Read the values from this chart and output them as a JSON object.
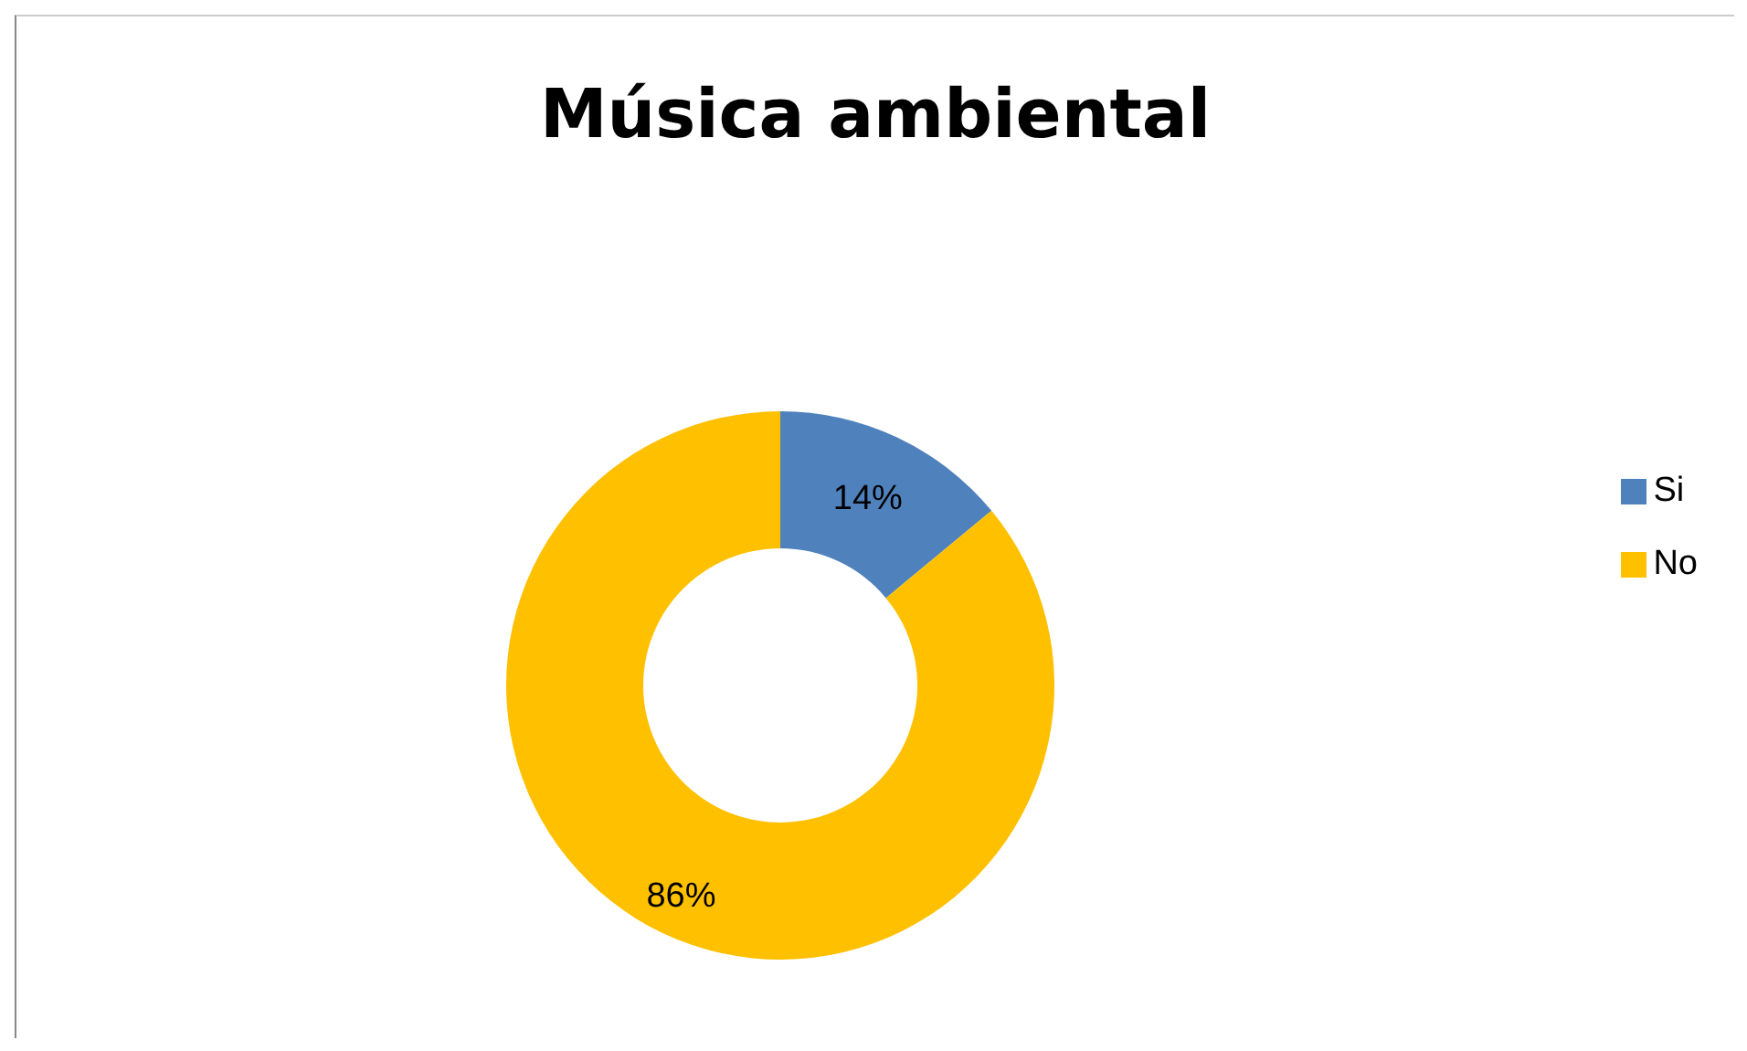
{
  "chart_data": {
    "type": "donut",
    "title": "Música ambiental",
    "categories": [
      "Si",
      "No"
    ],
    "values": [
      14,
      86
    ],
    "colors": [
      "#4f81bd",
      "#ffc000"
    ],
    "value_labels": [
      "14%",
      "86%"
    ],
    "legend": "right"
  }
}
